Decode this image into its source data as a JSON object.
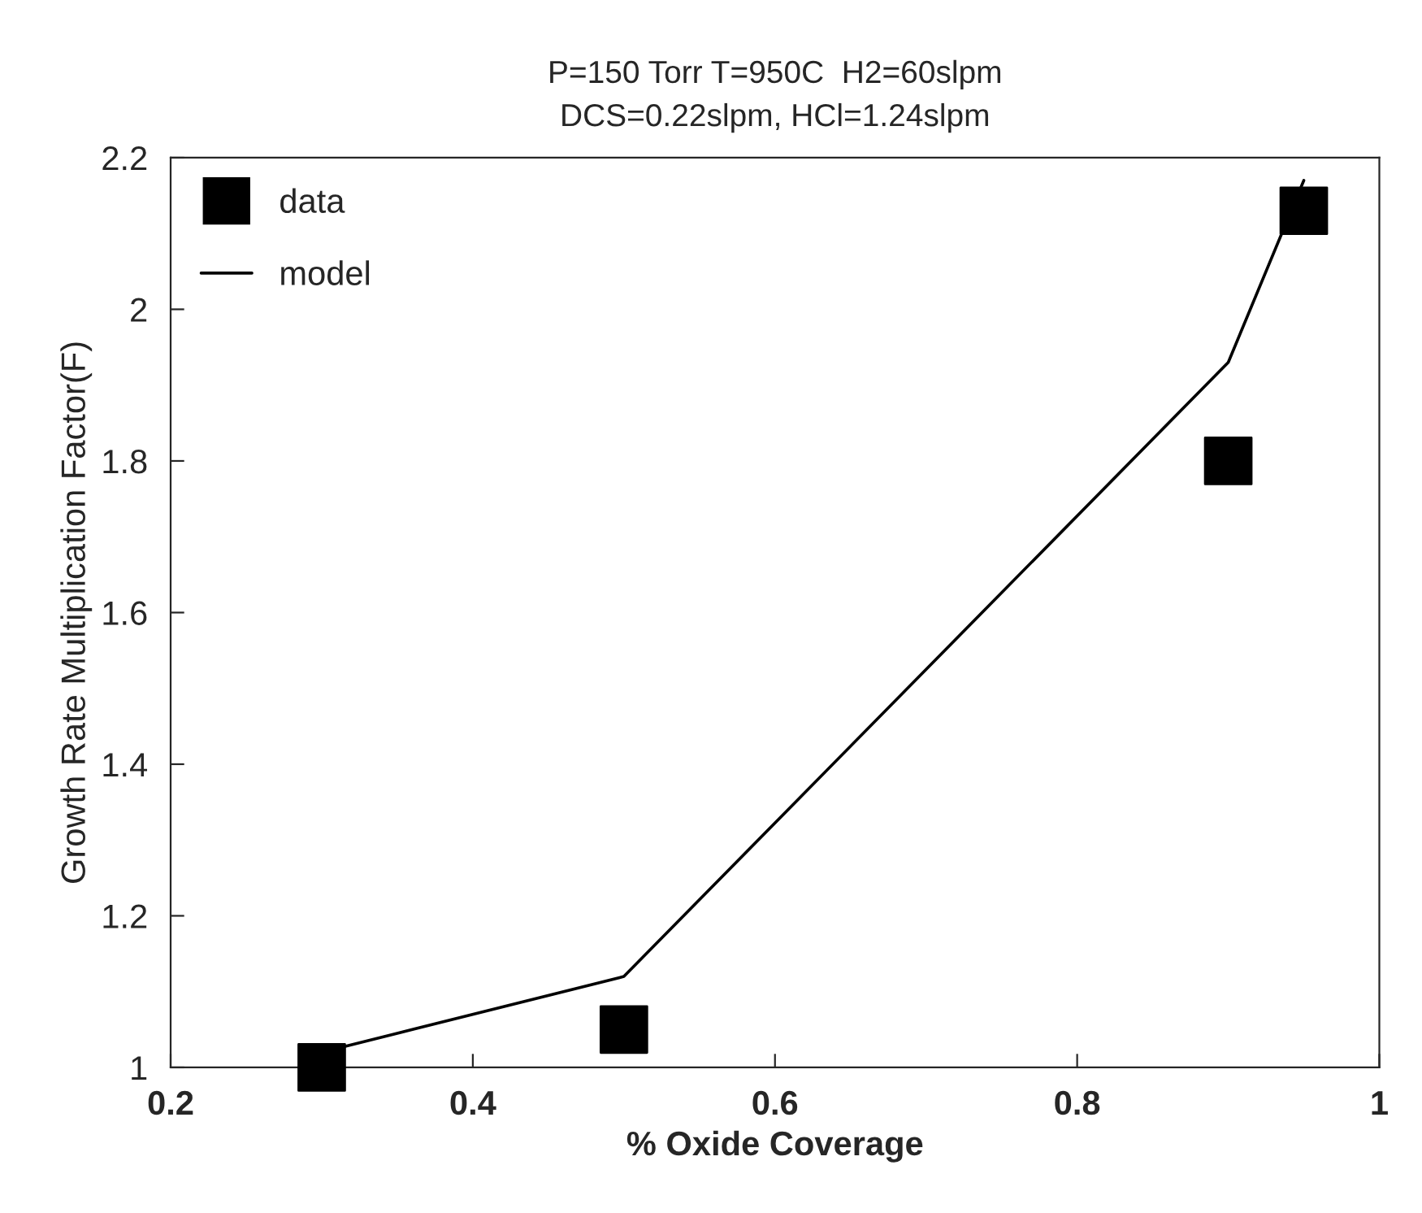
{
  "chart_data": {
    "type": "scatter",
    "title": "P=150 Torr T=950C  H2=60slpm\nDCS=0.22slpm, HCl=1.24slpm",
    "xlabel": "% Oxide Coverage",
    "ylabel": "Growth Rate Multiplication Factor(F)",
    "series": [
      {
        "name": "data",
        "color": "#000000",
        "marker": "square",
        "x": [
          0.3,
          0.5,
          0.9,
          0.95
        ],
        "values": [
          1.0,
          1.05,
          1.8,
          2.13
        ]
      },
      {
        "name": "model",
        "type": "line",
        "color": "#000000",
        "marker": "none",
        "line_style": "solid",
        "x": [
          0.3,
          0.5,
          0.9,
          0.95
        ],
        "values": [
          1.02,
          1.12,
          1.93,
          2.17
        ]
      }
    ],
    "xlim": [
      0.2,
      1
    ],
    "xticks": [
      {
        "value": 0.2,
        "label": "0.2"
      },
      {
        "value": 0.4,
        "label": "0.4"
      },
      {
        "value": 0.6,
        "label": "0.6"
      },
      {
        "value": 0.8,
        "label": "0.8"
      },
      {
        "value": 1,
        "label": "1"
      }
    ],
    "ylim": [
      1,
      2.2
    ],
    "yticks": [
      {
        "value": 1,
        "label": "1"
      },
      {
        "value": 1.2,
        "label": "1.2"
      },
      {
        "value": 1.4,
        "label": "1.4"
      },
      {
        "value": 1.6,
        "label": "1.6"
      },
      {
        "value": 1.8,
        "label": "1.8"
      },
      {
        "value": 2,
        "label": "2"
      },
      {
        "value": 2.2,
        "label": "2.2"
      }
    ],
    "grid": false,
    "legend": "top left"
  }
}
